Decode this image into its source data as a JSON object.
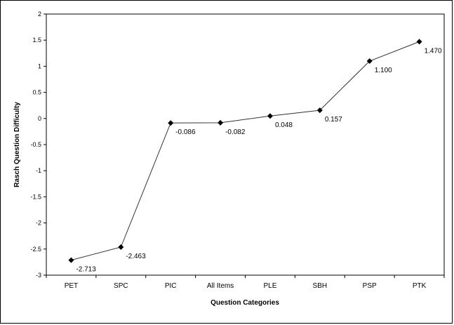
{
  "chart_data": {
    "type": "line",
    "title": "",
    "xlabel": "Question Categories",
    "ylabel": "Rasch Question Difficulty",
    "categories": [
      "PET",
      "SPC",
      "PIC",
      "All Items",
      "PLE",
      "SBH",
      "PSP",
      "PTK"
    ],
    "series": [
      {
        "values": [
          -2.713,
          -2.463,
          -0.086,
          -0.082,
          0.048,
          0.157,
          1.1,
          1.47
        ]
      }
    ],
    "data_labels": [
      "-2.713",
      "-2.463",
      "-0.086",
      "-0.082",
      "0.048",
      "0.157",
      "1.100",
      "1.470"
    ],
    "ylim": [
      -3,
      2
    ],
    "yticks": [
      2,
      1.5,
      1,
      0.5,
      0,
      -0.5,
      -1,
      -1.5,
      -2,
      -2.5,
      -3
    ],
    "ytick_labels": [
      "2",
      "1.5",
      "1",
      "0.5",
      "0",
      "-0.5",
      "-1",
      "-1.5",
      "-2",
      "-2.5",
      "-3"
    ],
    "grid": false,
    "legend": "none",
    "line_color": "#333333",
    "marker": "diamond"
  }
}
